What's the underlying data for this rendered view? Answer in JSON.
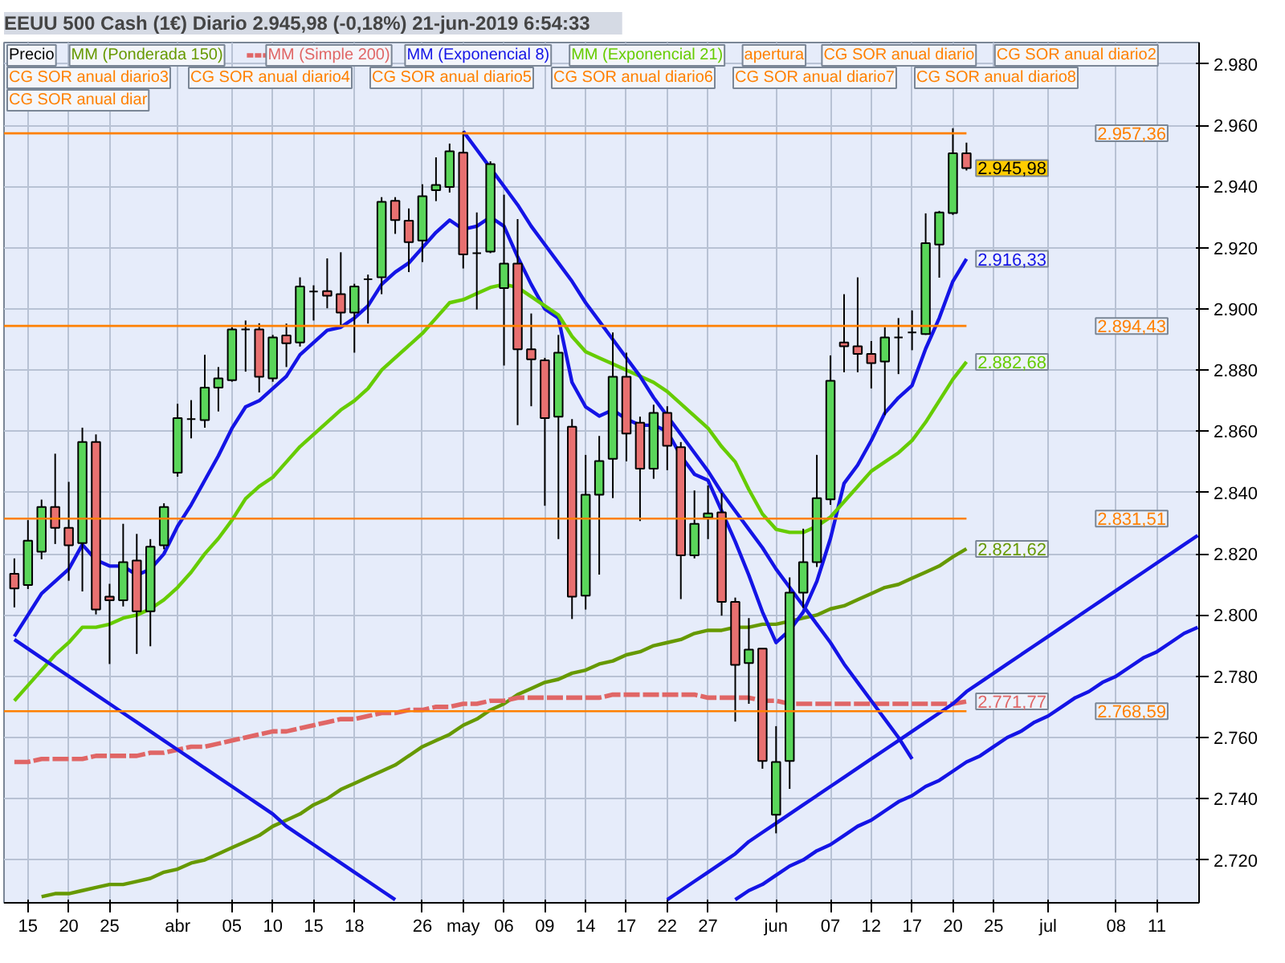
{
  "chart_data": {
    "type": "candlestick",
    "title": "EEUU 500 Cash (1€)   Diario   2.945,98 (-0,18%)   21-jun-2019 6:54:33",
    "categories": [
      null,
      "15",
      null,
      null,
      "20",
      null,
      null,
      "25",
      null,
      null,
      null,
      null,
      "abr",
      null,
      null,
      null,
      "05",
      null,
      null,
      "10",
      null,
      null,
      "15",
      null,
      null,
      "18",
      null,
      null,
      null,
      null,
      "26",
      null,
      null,
      "may",
      null,
      null,
      "06",
      null,
      null,
      "09",
      null,
      null,
      "14",
      null,
      null,
      "17",
      null,
      null,
      "22",
      null,
      null,
      "27",
      null,
      null,
      null,
      null,
      "jun",
      null,
      null,
      null,
      "07",
      null,
      null,
      "12",
      null,
      null,
      "17",
      null,
      null,
      "20",
      null,
      null,
      "25",
      null,
      null,
      null,
      "jul",
      null,
      null,
      null,
      null,
      "08",
      null,
      null,
      "11",
      null,
      null,
      null
    ],
    "ylim": [
      2706,
      2987
    ],
    "yticks": [
      {
        "value": 2720,
        "label": "2.720"
      },
      {
        "value": 2740,
        "label": "2.740"
      },
      {
        "value": 2760,
        "label": "2.760"
      },
      {
        "value": 2780,
        "label": "2.780"
      },
      {
        "value": 2800,
        "label": "2.800"
      },
      {
        "value": 2820,
        "label": "2.820"
      },
      {
        "value": 2840,
        "label": "2.840"
      },
      {
        "value": 2860,
        "label": "2.860"
      },
      {
        "value": 2880,
        "label": "2.880"
      },
      {
        "value": 2900,
        "label": "2.900"
      },
      {
        "value": 2920,
        "label": "2.920"
      },
      {
        "value": 2940,
        "label": "2.940"
      },
      {
        "value": 2960,
        "label": "2.960"
      },
      {
        "value": 2980,
        "label": "2.980"
      }
    ],
    "grid": true,
    "legend": "top left",
    "series": [
      {
        "name": "Precio",
        "color": "#000000",
        "ohlc": [
          [
            2813.5,
            2818.5,
            2802.5,
            2808.7
          ],
          [
            2809.8,
            2831,
            2808.5,
            2824.3
          ],
          [
            2820.7,
            2837.7,
            2818.2,
            2835.3
          ],
          [
            2835.3,
            2852.7,
            2823.2,
            2828.5
          ],
          [
            2828.5,
            2843.5,
            2811.2,
            2822.8
          ],
          [
            2823.5,
            2861.2,
            2807.7,
            2856.5
          ],
          [
            2856.5,
            2859,
            2800.2,
            2801.8
          ],
          [
            2806,
            2810.2,
            2784,
            2804.8
          ],
          [
            2804.8,
            2829.8,
            2802.8,
            2817.3
          ],
          [
            2817.8,
            2826.5,
            2787.3,
            2801.2
          ],
          [
            2801.2,
            2824.8,
            2789.8,
            2822.3
          ],
          [
            2822.8,
            2836.5,
            2821.5,
            2835.3
          ],
          [
            2846.5,
            2869,
            2845.2,
            2864.3
          ],
          [
            2864,
            2870.2,
            2857.7,
            2864
          ],
          [
            2863.7,
            2885,
            2861.2,
            2874.3
          ],
          [
            2874.3,
            2881,
            2866.5,
            2877.3
          ],
          [
            2876.7,
            2894,
            2876.2,
            2893.3
          ],
          [
            2893.3,
            2896.2,
            2879.5,
            2893.3
          ],
          [
            2893.3,
            2895.3,
            2872.7,
            2877.8
          ],
          [
            2877.3,
            2891.5,
            2876.2,
            2890.7
          ],
          [
            2891.3,
            2895.2,
            2881,
            2888.8
          ],
          [
            2889,
            2910.3,
            2887.7,
            2907.3
          ],
          [
            2905.7,
            2907.7,
            2896.2,
            2905.7
          ],
          [
            2905.8,
            2916.5,
            2900.2,
            2904.3
          ],
          [
            2904.8,
            2918.5,
            2894.5,
            2898.8
          ],
          [
            2898.8,
            2908.2,
            2885.7,
            2907.3
          ],
          [
            2909.7,
            2911.2,
            2895.2,
            2909.7
          ],
          [
            2910.3,
            2936.5,
            2904.8,
            2935
          ],
          [
            2935.3,
            2936.5,
            2924.5,
            2929
          ],
          [
            2928.8,
            2932.8,
            2912,
            2921.8
          ],
          [
            2922.3,
            2940.7,
            2915.3,
            2936.8
          ],
          [
            2938.8,
            2949.5,
            2935.2,
            2940.5
          ],
          [
            2939.8,
            2954,
            2938,
            2951.5
          ],
          [
            2951,
            2958,
            2913.2,
            2917.8
          ],
          [
            2918.2,
            2931.5,
            2899.8,
            2918.2
          ],
          [
            2918.7,
            2948.2,
            2918.2,
            2947.3
          ],
          [
            2906.8,
            2937.3,
            2881.5,
            2914.8
          ],
          [
            2914.8,
            2929.3,
            2862,
            2886.8
          ],
          [
            2886.8,
            2898.5,
            2868.2,
            2883.5
          ],
          [
            2883.2,
            2884,
            2835.7,
            2864.3
          ],
          [
            2864.8,
            2891.5,
            2824.8,
            2885.7
          ],
          [
            2861.5,
            2864,
            2798.7,
            2806
          ],
          [
            2806.3,
            2852.3,
            2801.8,
            2839.3
          ],
          [
            2839.3,
            2858.5,
            2813.2,
            2850.3
          ],
          [
            2851,
            2892.3,
            2838.2,
            2877.8
          ],
          [
            2877.8,
            2885.7,
            2850.2,
            2859.3
          ],
          [
            2862.8,
            2864.8,
            2830.7,
            2847.8
          ],
          [
            2847.8,
            2868.7,
            2844.5,
            2866
          ],
          [
            2866,
            2868.2,
            2847.3,
            2855.3
          ],
          [
            2854.8,
            2856.5,
            2805.2,
            2819.5
          ],
          [
            2819.5,
            2840.7,
            2818.5,
            2829.8
          ],
          [
            2831.8,
            2842.3,
            2824.8,
            2833.2
          ],
          [
            2833.5,
            2839.8,
            2799.8,
            2804.3
          ],
          [
            2804.3,
            2805.7,
            2765.2,
            2783.7
          ],
          [
            2784.3,
            2799,
            2771,
            2788.7
          ],
          [
            2789,
            2789,
            2749.8,
            2752.3
          ],
          [
            2734.8,
            2763.7,
            2728.7,
            2752
          ],
          [
            2752.3,
            2812.3,
            2743.2,
            2807.3
          ],
          [
            2807.3,
            2828.2,
            2802.3,
            2817.3
          ],
          [
            2817.3,
            2852.3,
            2815.7,
            2838.2
          ],
          [
            2837.8,
            2884.8,
            2836,
            2876.5
          ],
          [
            2889,
            2904.8,
            2879.3,
            2887.8
          ],
          [
            2887.8,
            2910.3,
            2879.3,
            2885.3
          ],
          [
            2885.3,
            2889.5,
            2874,
            2882.3
          ],
          [
            2882.8,
            2894,
            2865.3,
            2890.7
          ],
          [
            2890.7,
            2897,
            2878.7,
            2890.7
          ],
          [
            2892.3,
            2899.5,
            2886.5,
            2892.3
          ],
          [
            2891.8,
            2931.2,
            2891.5,
            2921.5
          ],
          [
            2921,
            2932,
            2910.2,
            2931.5
          ],
          [
            2931.3,
            2959,
            2930.7,
            2950.8
          ],
          [
            2950.8,
            2954.3,
            2945.2,
            2945.98
          ],
          null,
          null,
          null,
          null,
          null,
          null,
          null,
          null,
          null,
          null,
          null,
          null,
          null,
          null,
          null,
          null,
          null
        ],
        "value_labels": [
          null,
          null,
          null,
          null,
          null,
          null,
          null,
          null,
          null,
          null,
          null,
          null,
          null,
          null,
          null,
          null,
          null,
          null,
          null,
          null,
          null,
          null,
          null,
          null,
          null,
          null,
          null,
          null,
          null,
          null,
          null,
          null,
          null,
          null,
          null,
          null,
          null,
          null,
          null,
          null,
          null,
          null,
          null,
          null,
          null,
          null,
          null,
          null,
          null,
          null,
          null,
          null,
          null,
          null,
          null,
          null,
          null,
          null,
          null,
          null,
          null,
          null,
          null,
          null,
          null,
          null,
          null,
          null,
          null,
          null,
          "2.945,98",
          null,
          null,
          null,
          null,
          null,
          null,
          null,
          null,
          null,
          null,
          null,
          null,
          null,
          null,
          null,
          null,
          null
        ],
        "colors": [
          "#e87070",
          "#5ad65a",
          "#5ad65a",
          "#e87070",
          "#e87070",
          "#5ad65a",
          "#e87070",
          "#e87070",
          "#5ad65a",
          "#e87070",
          "#5ad65a",
          "#5ad65a",
          "#5ad65a",
          "#000000",
          "#5ad65a",
          "#5ad65a",
          "#5ad65a",
          "#000000",
          "#e87070",
          "#5ad65a",
          "#e87070",
          "#5ad65a",
          "#000000",
          "#e87070",
          "#e87070",
          "#5ad65a",
          "#000000",
          "#5ad65a",
          "#e87070",
          "#e87070",
          "#5ad65a",
          "#5ad65a",
          "#5ad65a",
          "#e87070",
          "#000000",
          "#5ad65a",
          "#5ad65a",
          "#e87070",
          "#e87070",
          "#e87070",
          "#5ad65a",
          "#e87070",
          "#5ad65a",
          "#5ad65a",
          "#5ad65a",
          "#e87070",
          "#e87070",
          "#5ad65a",
          "#e87070",
          "#e87070",
          "#5ad65a",
          "#5ad65a",
          "#e87070",
          "#e87070",
          "#5ad65a",
          "#e87070",
          "#5ad65a",
          "#5ad65a",
          "#5ad65a",
          "#5ad65a",
          "#5ad65a",
          "#e87070",
          "#e87070",
          "#e87070",
          "#5ad65a",
          "#000000",
          "#000000",
          "#5ad65a",
          "#5ad65a",
          "#5ad65a",
          "#e87070",
          null,
          null,
          null,
          null,
          null,
          null,
          null,
          null,
          null,
          null,
          null,
          null,
          null,
          null,
          null,
          null,
          null
        ]
      },
      {
        "name": "MM (Ponderada 150)",
        "type": "line",
        "color": "#669900",
        "values": [
          null,
          null,
          2708,
          2709,
          2709,
          2710,
          2711,
          2712,
          2712,
          2713,
          2714,
          2716,
          2717,
          2719,
          2720,
          2722,
          2724,
          2726,
          2728,
          2731,
          2733,
          2735,
          2738,
          2740,
          2743,
          2745,
          2747,
          2749,
          2751,
          2754,
          2757,
          2759,
          2761,
          2764,
          2766,
          2769,
          2771,
          2774,
          2776,
          2778,
          2779,
          2781,
          2782,
          2784,
          2785,
          2787,
          2788,
          2790,
          2791,
          2792,
          2794,
          2795,
          2795,
          2796,
          2796,
          2797,
          2797,
          2798,
          2799,
          2800,
          2802,
          2803,
          2805,
          2807,
          2809,
          2810,
          2812,
          2814,
          2816,
          2819,
          2821.62,
          null,
          null,
          null,
          null,
          null,
          null,
          null,
          null,
          null,
          null,
          null,
          null,
          null,
          null,
          null,
          null,
          null
        ],
        "value_labels": [
          null,
          null,
          null,
          null,
          null,
          null,
          null,
          null,
          null,
          null,
          null,
          null,
          null,
          null,
          null,
          null,
          null,
          null,
          null,
          null,
          null,
          null,
          null,
          null,
          null,
          null,
          null,
          null,
          null,
          null,
          null,
          null,
          null,
          null,
          null,
          null,
          null,
          null,
          null,
          null,
          null,
          null,
          null,
          null,
          null,
          null,
          null,
          null,
          null,
          null,
          null,
          null,
          null,
          null,
          null,
          null,
          null,
          null,
          null,
          null,
          null,
          null,
          null,
          null,
          null,
          null,
          null,
          null,
          null,
          null,
          "2.821,62",
          null,
          null,
          null,
          null,
          null,
          null,
          null,
          null,
          null,
          null,
          null,
          null,
          null,
          null,
          null,
          null,
          null
        ]
      },
      {
        "name": "MM (Simple 200)",
        "type": "line",
        "line_style": "dashed",
        "color": "#e06666",
        "values": [
          2752,
          2752,
          2753,
          2753,
          2753,
          2753,
          2754,
          2754,
          2754,
          2754,
          2755,
          2755,
          2756,
          2757,
          2757,
          2758,
          2759,
          2760,
          2761,
          2762,
          2762,
          2763,
          2764,
          2765,
          2766,
          2766,
          2767,
          2768,
          2768,
          2769,
          2769,
          2770,
          2770,
          2771,
          2771,
          2772,
          2772,
          2773,
          2773,
          2773,
          2773,
          2773,
          2773,
          2773,
          2774,
          2774,
          2774,
          2774,
          2774,
          2774,
          2774,
          2773,
          2773,
          2773,
          2773,
          2772,
          2772,
          2771,
          2771,
          2771,
          2771,
          2771,
          2771,
          2771,
          2771,
          2771,
          2771,
          2771,
          2771,
          2771,
          2771.77,
          null,
          null,
          null,
          null,
          null,
          null,
          null,
          null,
          null,
          null,
          null,
          null,
          null,
          null,
          null,
          null,
          null
        ],
        "value_labels": [
          null,
          null,
          null,
          null,
          null,
          null,
          null,
          null,
          null,
          null,
          null,
          null,
          null,
          null,
          null,
          null,
          null,
          null,
          null,
          null,
          null,
          null,
          null,
          null,
          null,
          null,
          null,
          null,
          null,
          null,
          null,
          null,
          null,
          null,
          null,
          null,
          null,
          null,
          null,
          null,
          null,
          null,
          null,
          null,
          null,
          null,
          null,
          null,
          null,
          null,
          null,
          null,
          null,
          null,
          null,
          null,
          null,
          null,
          null,
          null,
          null,
          null,
          null,
          null,
          null,
          null,
          null,
          null,
          null,
          null,
          "2.771,77",
          null,
          null,
          null,
          null,
          null,
          null,
          null,
          null,
          null,
          null,
          null,
          null,
          null,
          null,
          null,
          null,
          null
        ]
      },
      {
        "name": "MM (Exponencial 8)",
        "type": "line",
        "color": "#1414e6",
        "values": [
          2793,
          2800,
          2807,
          2811,
          2815,
          2823,
          2818,
          2816,
          2816,
          2813,
          2815,
          2820,
          2829,
          2836,
          2844,
          2852,
          2861,
          2868,
          2870,
          2874,
          2878,
          2885,
          2889,
          2893,
          2894,
          2897,
          2901,
          2908,
          2912,
          2915,
          2920,
          2925,
          2929,
          2926,
          2927,
          2930,
          2927,
          2917,
          2908,
          2900,
          2897,
          2876,
          2868,
          2865,
          2867,
          2864,
          2862,
          2862,
          2860,
          2852,
          2846,
          2844,
          2834,
          2824,
          2813,
          2801,
          2791,
          2795,
          2801,
          2811,
          2825,
          2843,
          2849,
          2857,
          2866,
          2871,
          2875,
          2887,
          2897,
          2909,
          2916.33,
          null,
          null,
          null,
          null,
          null,
          null,
          null,
          null,
          null,
          null,
          null,
          null,
          null,
          null,
          null,
          null,
          null
        ],
        "value_labels": [
          null,
          null,
          null,
          null,
          null,
          null,
          null,
          null,
          null,
          null,
          null,
          null,
          null,
          null,
          null,
          null,
          null,
          null,
          null,
          null,
          null,
          null,
          null,
          null,
          null,
          null,
          null,
          null,
          null,
          null,
          null,
          null,
          null,
          null,
          null,
          null,
          null,
          null,
          null,
          null,
          null,
          null,
          null,
          null,
          null,
          null,
          null,
          null,
          null,
          null,
          null,
          null,
          null,
          null,
          null,
          null,
          null,
          null,
          null,
          null,
          null,
          null,
          null,
          null,
          null,
          null,
          null,
          null,
          null,
          null,
          "2.916,33",
          null,
          null,
          null,
          null,
          null,
          null,
          null,
          null,
          null,
          null,
          null,
          null,
          null,
          null,
          null,
          null,
          null
        ]
      },
      {
        "name": "MM (Exponencial 21)",
        "type": "line",
        "color": "#66cc00",
        "values": [
          2772,
          2777,
          2782,
          2787,
          2791,
          2796,
          2796,
          2797,
          2799,
          2800,
          2802,
          2805,
          2809,
          2814,
          2820,
          2825,
          2831,
          2838,
          2842,
          2845,
          2850,
          2855,
          2859,
          2863,
          2867,
          2870,
          2874,
          2880,
          2884,
          2888,
          2892,
          2897,
          2902,
          2903,
          2905,
          2907,
          2908,
          2907,
          2904,
          2901,
          2898,
          2891,
          2886,
          2884,
          2882,
          2880,
          2878,
          2876,
          2873,
          2869,
          2865,
          2861,
          2855,
          2850,
          2841,
          2833,
          2828,
          2827,
          2827,
          2829,
          2832,
          2837,
          2842,
          2847,
          2850,
          2853,
          2857,
          2863,
          2870,
          2877,
          2882.68,
          null,
          null,
          null,
          null,
          null,
          null,
          null,
          null,
          null,
          null,
          null,
          null,
          null,
          null,
          null,
          null,
          null
        ],
        "value_labels": [
          null,
          null,
          null,
          null,
          null,
          null,
          null,
          null,
          null,
          null,
          null,
          null,
          null,
          null,
          null,
          null,
          null,
          null,
          null,
          null,
          null,
          null,
          null,
          null,
          null,
          null,
          null,
          null,
          null,
          null,
          null,
          null,
          null,
          null,
          null,
          null,
          null,
          null,
          null,
          null,
          null,
          null,
          null,
          null,
          null,
          null,
          null,
          null,
          null,
          null,
          null,
          null,
          null,
          null,
          null,
          null,
          null,
          null,
          null,
          null,
          null,
          null,
          null,
          null,
          null,
          null,
          null,
          null,
          null,
          null,
          "2.882,68",
          null,
          null,
          null,
          null,
          null,
          null,
          null,
          null,
          null,
          null,
          null,
          null,
          null,
          null,
          null,
          null,
          null
        ]
      },
      {
        "type": "line",
        "color": "#1414e6",
        "values": [
          null,
          null,
          null,
          null,
          null,
          null,
          null,
          null,
          null,
          null,
          null,
          null,
          null,
          null,
          null,
          null,
          null,
          null,
          null,
          null,
          null,
          null,
          null,
          null,
          null,
          null,
          null,
          null,
          null,
          null,
          null,
          null,
          null,
          2958,
          2952,
          2946,
          2940,
          2934,
          2927,
          2921,
          2915,
          2909,
          2902,
          2896,
          2890,
          2884,
          2878,
          2871,
          2865,
          2859,
          2853,
          2847,
          2840,
          2834,
          2828,
          2822,
          2815,
          2809,
          2803,
          2797,
          2791,
          2784,
          2778,
          2772,
          2766,
          2760,
          2753,
          null,
          null,
          null,
          null,
          null,
          null,
          null,
          null,
          null,
          null,
          null,
          null,
          null,
          null,
          null,
          null,
          null,
          null,
          null,
          null,
          null
        ]
      },
      {
        "type": "line",
        "color": "#1414e6",
        "values": [
          2792,
          2789,
          2786,
          2783,
          2780,
          2777,
          2774,
          2771,
          2768,
          2765,
          2762,
          2759,
          2756,
          2753,
          2750,
          2747,
          2744,
          2741,
          2738,
          2735,
          2731,
          2728,
          2725,
          2722,
          2719,
          2716,
          2713,
          2710,
          2707,
          null,
          null,
          null,
          null,
          null,
          null,
          null,
          null,
          null,
          null,
          null,
          null,
          null,
          null,
          null,
          null,
          null,
          null,
          null,
          null,
          null,
          null,
          null,
          null,
          null,
          null,
          null,
          null,
          null,
          null,
          null,
          null,
          null,
          null,
          null,
          null,
          null,
          null,
          null,
          null,
          null,
          null,
          null,
          null,
          null,
          null,
          null,
          null,
          null,
          null,
          null,
          null,
          null,
          null,
          null,
          null,
          null,
          null,
          null
        ]
      },
      {
        "type": "line",
        "color": "#1414e6",
        "values": [
          null,
          null,
          null,
          null,
          null,
          null,
          null,
          null,
          null,
          null,
          null,
          null,
          null,
          null,
          null,
          null,
          null,
          null,
          null,
          null,
          null,
          null,
          null,
          null,
          null,
          null,
          null,
          null,
          null,
          null,
          null,
          null,
          null,
          null,
          null,
          null,
          null,
          null,
          null,
          null,
          null,
          null,
          null,
          null,
          null,
          null,
          null,
          null,
          2707,
          2710,
          2713,
          2716,
          2719,
          2722,
          2726,
          2729,
          2732,
          2735,
          2738,
          2741,
          2744,
          2747,
          2750,
          2753,
          2756,
          2759,
          2762,
          2765,
          2768,
          2771,
          2775,
          2778,
          2781,
          2784,
          2787,
          2790,
          2793,
          2796,
          2799,
          2802,
          2805,
          2808,
          2811,
          2814,
          2817,
          2820,
          2823,
          2826
        ]
      },
      {
        "type": "line",
        "color": "#1414e6",
        "values": [
          null,
          null,
          null,
          null,
          null,
          null,
          null,
          null,
          null,
          null,
          null,
          null,
          null,
          null,
          null,
          null,
          null,
          null,
          null,
          null,
          null,
          null,
          null,
          null,
          null,
          null,
          null,
          null,
          null,
          null,
          null,
          null,
          null,
          null,
          null,
          null,
          null,
          null,
          null,
          null,
          null,
          null,
          null,
          null,
          null,
          null,
          null,
          null,
          null,
          null,
          null,
          null,
          null,
          2707,
          2710,
          2712,
          2715,
          2718,
          2720,
          2723,
          2725,
          2728,
          2731,
          2733,
          2736,
          2739,
          2741,
          2744,
          2746,
          2749,
          2752,
          2754,
          2757,
          2760,
          2762,
          2765,
          2767,
          2770,
          2773,
          2775,
          2778,
          2780,
          2783,
          2786,
          2788,
          2791,
          2794,
          2796
        ]
      }
    ],
    "ref_lines": [
      {
        "axis": "y",
        "value": 2957.36,
        "label": "2.957,36",
        "color": "#ff8000"
      },
      {
        "axis": "y",
        "value": 2894.43,
        "label": "2.894,43",
        "color": "#ff8000"
      },
      {
        "axis": "y",
        "value": 2831.51,
        "label": "2.831,51",
        "color": "#ff8000"
      },
      {
        "axis": "y",
        "value": 2768.59,
        "label": "2.768,59",
        "color": "#ff8000"
      }
    ],
    "annotations": [
      "apertura",
      "CG SOR anual diario",
      "CG SOR anual diario2",
      "CG SOR anual diario3",
      "CG SOR anual diario4",
      "CG SOR anual diario5",
      "CG SOR anual diario6",
      "CG SOR anual diario7",
      "CG SOR anual diario8",
      "CG SOR anual diar"
    ]
  }
}
